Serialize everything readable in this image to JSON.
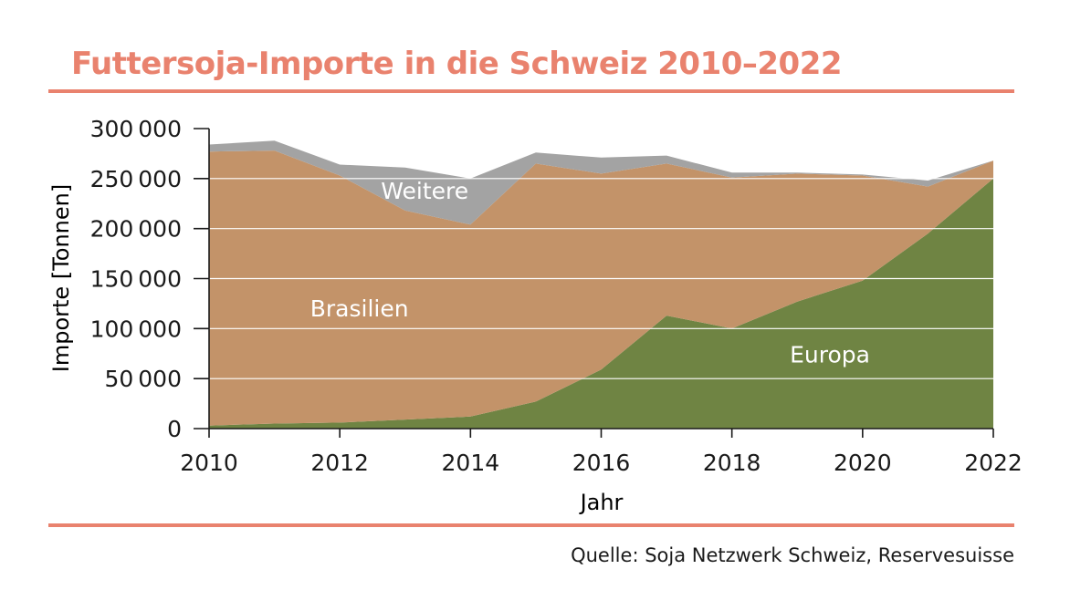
{
  "title": "Futtersoja-Importe in die Schweiz 2010–2022",
  "source": "Quelle: Soja Netzwerk Schweiz, Reservesuisse",
  "colors": {
    "accent": "#e9826e",
    "europa": "#6f8443",
    "brasilien": "#c39369",
    "weitere": "#a3a3a3",
    "grid": "#ffffff",
    "text": "#1a1a1a",
    "label_light": "#ffffff"
  },
  "chart_data": {
    "type": "area",
    "stacked": true,
    "title": "Futtersoja-Importe in die Schweiz 2010–2022",
    "xlabel": "Jahr",
    "ylabel": "Importe [Tonnen]",
    "x": [
      2010,
      2011,
      2012,
      2013,
      2014,
      2015,
      2016,
      2017,
      2018,
      2019,
      2020,
      2021,
      2022
    ],
    "xlim": [
      2010,
      2022
    ],
    "ylim": [
      0,
      300000
    ],
    "xticks": [
      2010,
      2012,
      2014,
      2016,
      2018,
      2020,
      2022
    ],
    "xtick_labels": [
      "2010",
      "2012",
      "2014",
      "2016",
      "2018",
      "2020",
      "2022"
    ],
    "yticks": [
      0,
      50000,
      100000,
      150000,
      200000,
      250000,
      300000
    ],
    "ytick_labels": [
      "0",
      "50 000",
      "100 000",
      "150 000",
      "200 000",
      "250 000",
      "300 000"
    ],
    "grid": true,
    "series": [
      {
        "name": "Europa",
        "label": "Europa",
        "values": [
          3000,
          5000,
          6000,
          9000,
          12000,
          27000,
          59000,
          113000,
          100000,
          127000,
          148000,
          195000,
          250000
        ],
        "label_at": {
          "x": 2019.5,
          "y": 66000
        }
      },
      {
        "name": "Brasilien",
        "label": "Brasilien",
        "values": [
          274000,
          273000,
          247000,
          209000,
          192000,
          238000,
          196000,
          152000,
          151000,
          128000,
          105000,
          47000,
          18000
        ],
        "label_at": {
          "x": 2012.3,
          "y": 112000
        }
      },
      {
        "name": "Weitere",
        "label": "Weitere",
        "values": [
          7000,
          10000,
          11000,
          43000,
          46000,
          11000,
          16000,
          8000,
          5000,
          1000,
          1000,
          6000,
          0
        ],
        "label_at": {
          "x": 2013.3,
          "y": 230000
        }
      }
    ]
  }
}
